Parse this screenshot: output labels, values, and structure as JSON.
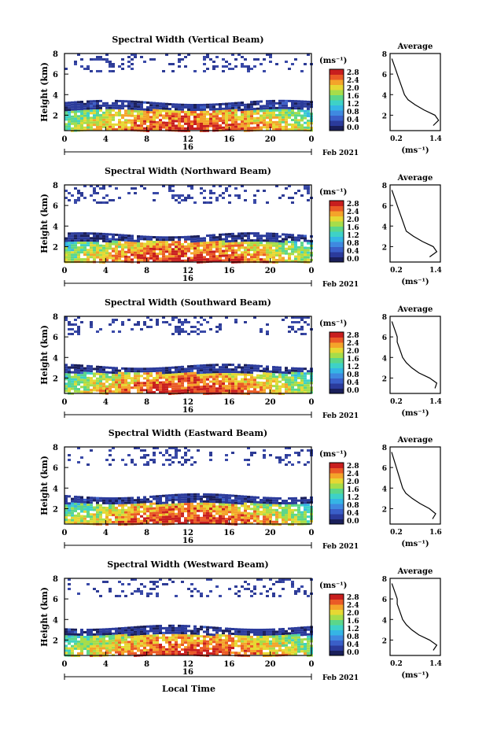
{
  "figure": {
    "xlabel": "Local Time",
    "date_label": "Feb 2021",
    "day_label": "16"
  },
  "chart_data": [
    {
      "type": "heatmap",
      "title": "Spectral Width (Vertical Beam)",
      "ylabel": "Height (km)",
      "xticks": [
        "0",
        "4",
        "8",
        "12",
        "16",
        "20",
        "0"
      ],
      "yticks": [
        "2",
        "4",
        "6",
        "8"
      ],
      "xlim": [
        0,
        24
      ],
      "ylim": [
        0.5,
        8
      ],
      "colorbar": {
        "unit": "(ms⁻¹)",
        "ticks": [
          "2.8",
          "2.4",
          "2.0",
          "1.6",
          "1.2",
          "0.8",
          "0.4",
          "0.0"
        ]
      },
      "profile": {
        "title": "Average",
        "xlabel": "(ms⁻¹)",
        "xticks": [
          "0.2",
          "1.4"
        ],
        "yticks": [
          "2",
          "4",
          "6",
          "8"
        ],
        "xlim": [
          0.1,
          1.5
        ],
        "ylim": [
          0.5,
          8
        ],
        "height": [
          1.0,
          1.5,
          2.0,
          2.5,
          3.0,
          3.5,
          4.0,
          4.5,
          5.0,
          5.5,
          6.0,
          6.5,
          7.0,
          7.5
        ],
        "width": [
          1.3,
          1.45,
          1.35,
          1.05,
          0.8,
          0.6,
          0.5,
          0.45,
          0.4,
          0.35,
          0.3,
          0.25,
          0.2,
          0.15
        ]
      }
    },
    {
      "type": "heatmap",
      "title": "Spectral Width (Northward Beam)",
      "ylabel": "Height (km)",
      "xticks": [
        "0",
        "4",
        "8",
        "12",
        "16",
        "20",
        "0"
      ],
      "yticks": [
        "2",
        "4",
        "6",
        "8"
      ],
      "xlim": [
        0,
        24
      ],
      "ylim": [
        0.5,
        8
      ],
      "colorbar": {
        "unit": "(ms⁻¹)",
        "ticks": [
          "2.8",
          "2.4",
          "2.0",
          "1.6",
          "1.2",
          "0.8",
          "0.4",
          "0.0"
        ]
      },
      "profile": {
        "title": "Average",
        "xlabel": "(ms⁻¹)",
        "xticks": [
          "0.2",
          "1.4"
        ],
        "yticks": [
          "2",
          "4",
          "6",
          "8"
        ],
        "xlim": [
          0.1,
          1.5
        ],
        "ylim": [
          0.5,
          8
        ],
        "height": [
          1.0,
          1.5,
          2.0,
          2.5,
          3.0,
          3.5,
          4.0,
          4.5,
          5.0,
          5.5,
          6.0,
          6.5,
          7.0,
          7.5
        ],
        "width": [
          1.2,
          1.4,
          1.3,
          1.0,
          0.75,
          0.55,
          0.5,
          0.45,
          0.4,
          0.35,
          0.3,
          0.25,
          0.2,
          0.15
        ]
      }
    },
    {
      "type": "heatmap",
      "title": "Spectral Width (Southward Beam)",
      "ylabel": "Height (km)",
      "xticks": [
        "0",
        "4",
        "8",
        "12",
        "16",
        "20",
        "0"
      ],
      "yticks": [
        "2",
        "4",
        "6",
        "8"
      ],
      "xlim": [
        0,
        24
      ],
      "ylim": [
        0.5,
        8
      ],
      "colorbar": {
        "unit": "(ms⁻¹)",
        "ticks": [
          "2.8",
          "2.4",
          "2.0",
          "1.6",
          "1.2",
          "0.8",
          "0.4",
          "0.0"
        ]
      },
      "profile": {
        "title": "Average",
        "xlabel": "(ms⁻¹)",
        "xticks": [
          "0.2",
          "1.4"
        ],
        "yticks": [
          "2",
          "4",
          "6",
          "8"
        ],
        "xlim": [
          0.1,
          1.5
        ],
        "ylim": [
          0.5,
          8
        ],
        "height": [
          1.0,
          1.5,
          2.0,
          2.5,
          3.0,
          3.5,
          4.0,
          4.5,
          5.0,
          5.5,
          6.0,
          6.5,
          7.0,
          7.5
        ],
        "width": [
          1.35,
          1.4,
          1.2,
          0.9,
          0.7,
          0.55,
          0.45,
          0.4,
          0.35,
          0.3,
          0.3,
          0.25,
          0.2,
          0.15
        ]
      }
    },
    {
      "type": "heatmap",
      "title": "Spectral Width (Eastward Beam)",
      "ylabel": "Height (km)",
      "xticks": [
        "0",
        "4",
        "8",
        "12",
        "16",
        "20",
        "0"
      ],
      "yticks": [
        "2",
        "4",
        "6",
        "8"
      ],
      "xlim": [
        0,
        24
      ],
      "ylim": [
        0.5,
        8
      ],
      "colorbar": {
        "unit": "(ms⁻¹)",
        "ticks": [
          "2.8",
          "2.4",
          "2.0",
          "1.6",
          "1.2",
          "0.8",
          "0.4",
          "0.0"
        ]
      },
      "profile": {
        "title": "Average",
        "xlabel": "(ms⁻¹)",
        "xticks": [
          "0.2",
          "1.6"
        ],
        "yticks": [
          "2",
          "4",
          "6",
          "8"
        ],
        "xlim": [
          0.1,
          1.7
        ],
        "ylim": [
          0.5,
          8
        ],
        "height": [
          1.0,
          1.5,
          2.0,
          2.5,
          3.0,
          3.5,
          4.0,
          4.5,
          5.0,
          5.5,
          6.0,
          6.5,
          7.0,
          7.5
        ],
        "width": [
          1.45,
          1.55,
          1.35,
          1.05,
          0.8,
          0.6,
          0.5,
          0.45,
          0.4,
          0.35,
          0.3,
          0.25,
          0.2,
          0.15
        ]
      }
    },
    {
      "type": "heatmap",
      "title": "Spectral Width (Westward Beam)",
      "ylabel": "Height (km)",
      "xticks": [
        "0",
        "4",
        "8",
        "12",
        "16",
        "20",
        "0"
      ],
      "yticks": [
        "2",
        "4",
        "6",
        "8"
      ],
      "xlim": [
        0,
        24
      ],
      "ylim": [
        0.5,
        8
      ],
      "colorbar": {
        "unit": "(ms⁻¹)",
        "ticks": [
          "2.8",
          "2.4",
          "2.0",
          "1.6",
          "1.2",
          "0.8",
          "0.4",
          "0.0"
        ]
      },
      "profile": {
        "title": "Average",
        "xlabel": "(ms⁻¹)",
        "xticks": [
          "0.2",
          "1.4"
        ],
        "yticks": [
          "2",
          "4",
          "6",
          "8"
        ],
        "xlim": [
          0.1,
          1.5
        ],
        "ylim": [
          0.5,
          8
        ],
        "height": [
          1.0,
          1.5,
          2.0,
          2.5,
          3.0,
          3.5,
          4.0,
          4.5,
          5.0,
          5.5,
          6.0,
          6.5,
          7.0,
          7.5
        ],
        "width": [
          1.3,
          1.4,
          1.2,
          0.9,
          0.7,
          0.55,
          0.45,
          0.4,
          0.35,
          0.3,
          0.3,
          0.25,
          0.2,
          0.15
        ]
      }
    }
  ]
}
